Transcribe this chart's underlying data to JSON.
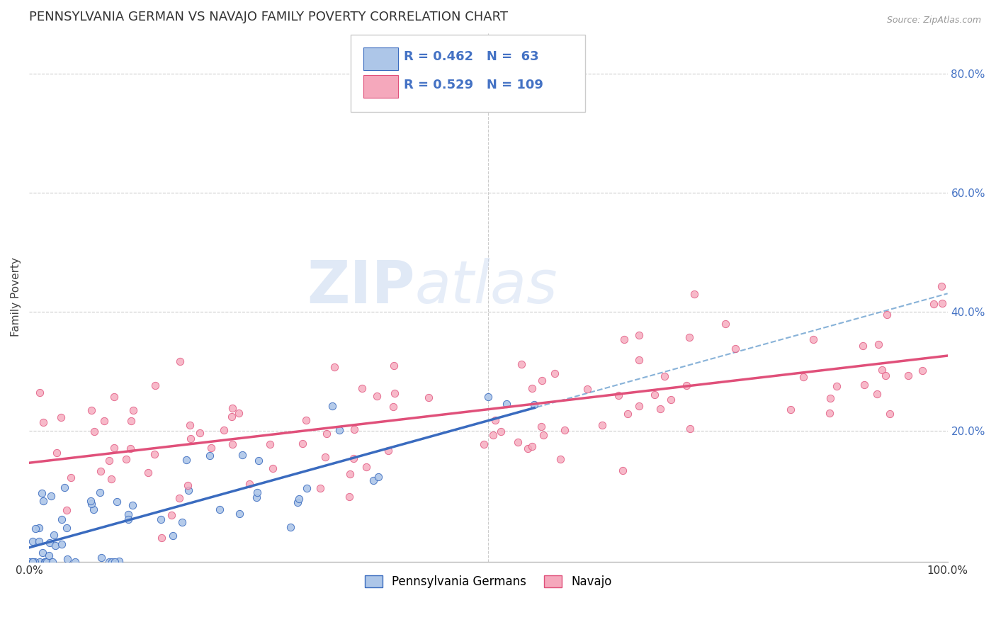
{
  "title": "PENNSYLVANIA GERMAN VS NAVAJO FAMILY POVERTY CORRELATION CHART",
  "source": "Source: ZipAtlas.com",
  "ylabel": "Family Poverty",
  "r1": 0.462,
  "n1": 63,
  "r2": 0.529,
  "n2": 109,
  "color1": "#adc6e8",
  "color2": "#f5a8bc",
  "line_color1": "#3a6bbf",
  "line_color2": "#e0507a",
  "dash_color": "#7baad4",
  "legend_label1": "Pennsylvania Germans",
  "legend_label2": "Navajo",
  "background_color": "#ffffff",
  "grid_color": "#cccccc",
  "watermark_zip": "ZIP",
  "watermark_atlas": "atlas",
  "title_fontsize": 13,
  "axis_label_fontsize": 11,
  "tick_fontsize": 11,
  "legend_fontsize": 13,
  "source_fontsize": 9,
  "blue_text_color": "#4472c4"
}
